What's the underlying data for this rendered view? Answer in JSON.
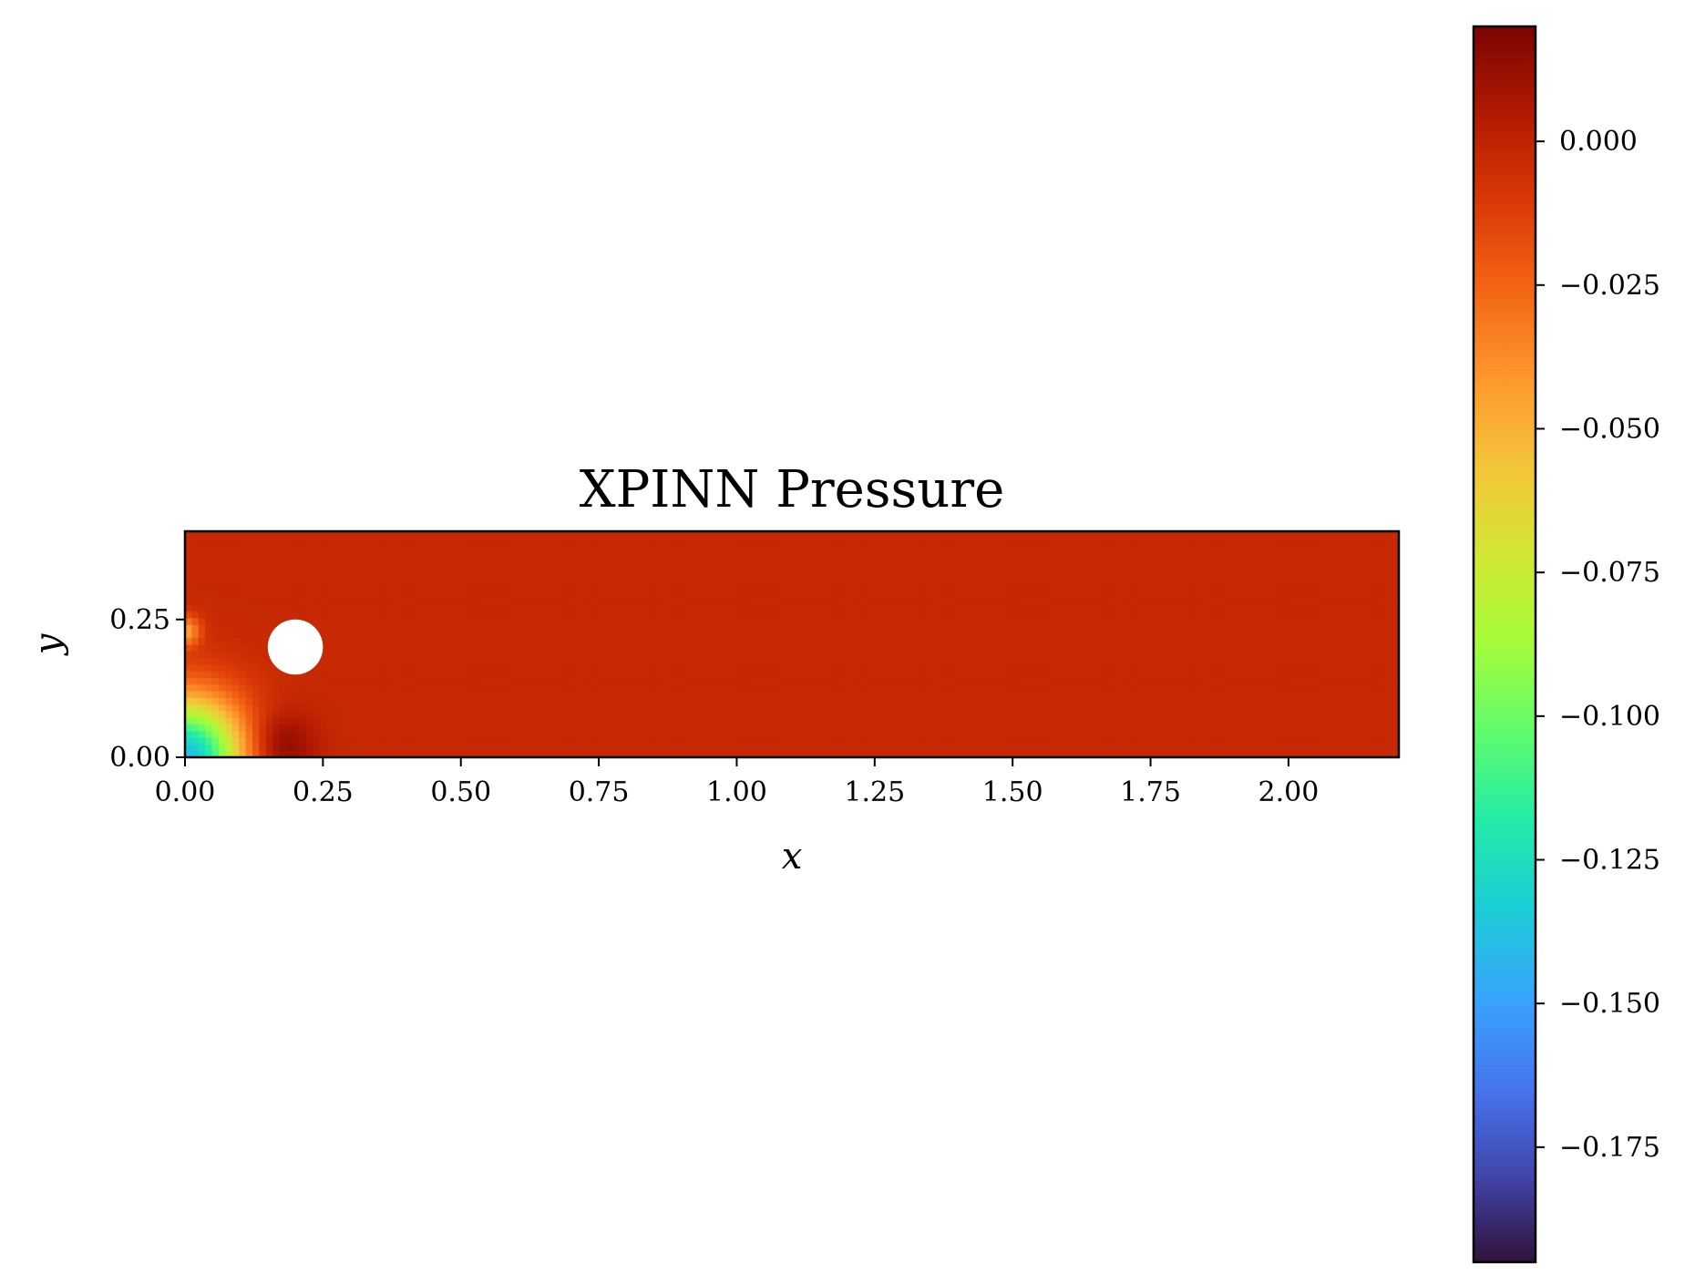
{
  "chart_data": {
    "type": "heatmap",
    "title": "XPINN Pressure",
    "xlabel": "x",
    "ylabel": "y",
    "xlim": [
      0.0,
      2.2
    ],
    "ylim": [
      0.0,
      0.41
    ],
    "x_ticks": [
      "0.00",
      "0.25",
      "0.50",
      "0.75",
      "1.00",
      "1.25",
      "1.50",
      "1.75",
      "2.00"
    ],
    "x_tick_values": [
      0.0,
      0.25,
      0.5,
      0.75,
      1.0,
      1.25,
      1.5,
      1.75,
      2.0
    ],
    "y_ticks": [
      "0.00",
      "0.25"
    ],
    "y_tick_values": [
      0.0,
      0.25
    ],
    "obstacle": {
      "shape": "circle",
      "center": [
        0.2,
        0.2
      ],
      "radius": 0.05
    },
    "field_background_value": -0.003,
    "field_features": [
      {
        "description": "low pressure near bottom-left corner",
        "center": [
          0.0,
          0.0
        ],
        "value": -0.14,
        "extent": 0.12
      },
      {
        "description": "high pressure just below cylinder",
        "center": [
          0.17,
          0.02
        ],
        "value": 0.02,
        "extent": 0.07
      },
      {
        "description": "low pressure near inlet at cylinder height",
        "center": [
          0.0,
          0.23
        ],
        "value": -0.045,
        "extent": 0.03
      }
    ],
    "colorbar": {
      "colormap": "turbo",
      "range": [
        -0.195,
        0.02
      ],
      "tick_values": [
        0.0,
        -0.025,
        -0.05,
        -0.075,
        -0.1,
        -0.125,
        -0.15,
        -0.175
      ],
      "tick_labels": [
        "0.000",
        "−0.025",
        "−0.050",
        "−0.075",
        "−0.100",
        "−0.125",
        "−0.150",
        "−0.175"
      ]
    },
    "grid": false,
    "legend": "none"
  }
}
